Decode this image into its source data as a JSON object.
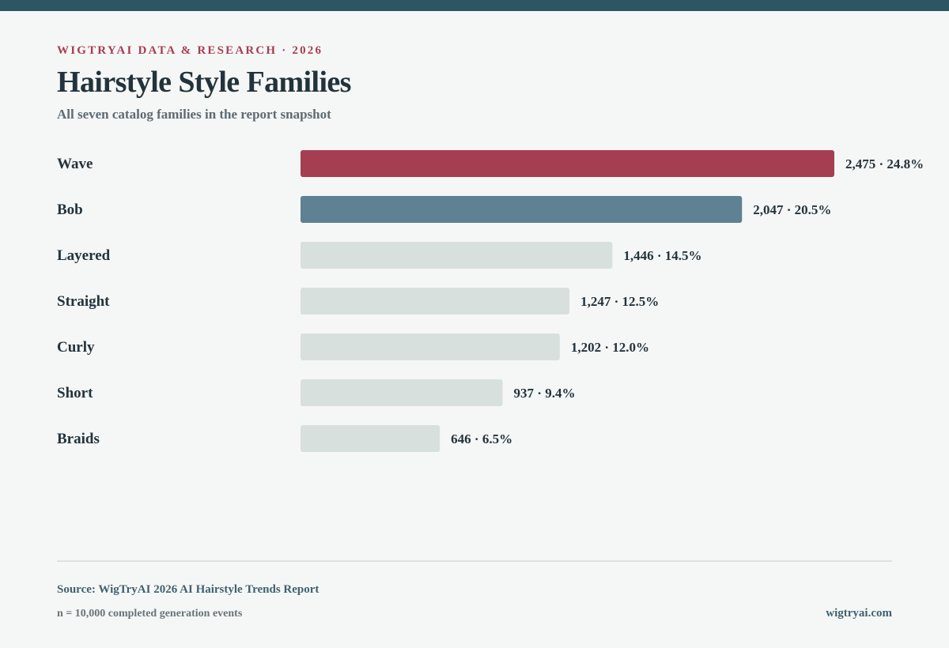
{
  "header": {
    "eyebrow": "WIGTRYAI DATA & RESEARCH · 2026",
    "title": "Hairstyle Style Families",
    "subtitle": "All seven catalog families in the report snapshot"
  },
  "chart_data": {
    "type": "bar",
    "orientation": "horizontal",
    "categories": [
      "Wave",
      "Bob",
      "Layered",
      "Straight",
      "Curly",
      "Short",
      "Braids"
    ],
    "values": [
      2475,
      2047,
      1446,
      1247,
      1202,
      937,
      646
    ],
    "percents": [
      24.8,
      20.5,
      14.5,
      12.5,
      12.0,
      9.4,
      6.5
    ],
    "value_labels": [
      "2,475 · 24.8%",
      "2,047 · 20.5%",
      "1,446 · 14.5%",
      "1,247 · 12.5%",
      "1,202 · 12.0%",
      "937 · 9.4%",
      "646 · 6.5%"
    ],
    "bar_colors": [
      "#a63e52",
      "#5e8193",
      "#d8e0de",
      "#d8e0de",
      "#d8e0de",
      "#d8e0de",
      "#d8e0de"
    ],
    "label_color": "#23333b",
    "grid": false,
    "legend": "none"
  },
  "footer": {
    "source": "Source: WigTryAI 2026 AI Hairstyle Trends Report",
    "note": "n = 10,000 completed generation events",
    "site": "wigtryai.com"
  }
}
